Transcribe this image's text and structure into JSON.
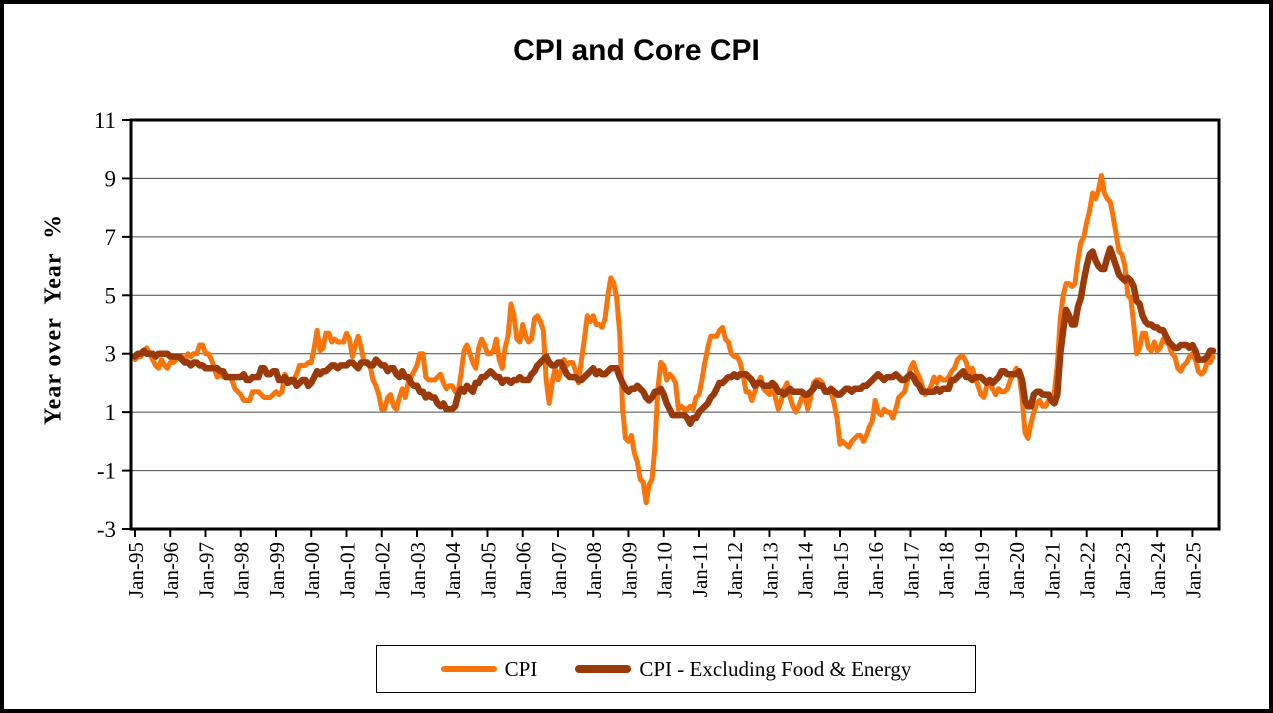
{
  "chart": {
    "title": "CPI and Core CPI",
    "ylabel": "Year over  Year  %"
  },
  "legend": {
    "items": [
      {
        "label": "CPI",
        "color": "#FA740A"
      },
      {
        "label": "CPI - Excluding Food & Energy",
        "color": "#9A3A0B"
      }
    ]
  },
  "colors": {
    "cpi_line": "#FA740A",
    "core_line": "#9A3A0B",
    "gridline": "#4a4a4a",
    "axis": "#000000",
    "background": "#ffffff"
  },
  "chart_data": {
    "type": "line",
    "title": "CPI and Core CPI",
    "xlabel": "",
    "ylabel": "Year over Year %",
    "x_start": "Jan-1995",
    "x_end": "Aug-2025",
    "frequency": "monthly",
    "ylim": [
      -3,
      11
    ],
    "yticks": [
      -3,
      -1,
      1,
      3,
      5,
      7,
      9,
      11
    ],
    "grid": true,
    "legend_position": "bottom",
    "xtick_labels": [
      "Jan-95",
      "Jan-96",
      "Jan-97",
      "Jan-98",
      "Jan-99",
      "Jan-00",
      "Jan-01",
      "Jan-02",
      "Jan-03",
      "Jan-04",
      "Jan-05",
      "Jan-06",
      "Jan-07",
      "Jan-08",
      "Jan-09",
      "Jan-10",
      "Jan-11",
      "Jan-12",
      "Jan-13",
      "Jan-14",
      "Jan-15",
      "Jan-16",
      "Jan-17",
      "Jan-18",
      "Jan-19",
      "Jan-20",
      "Jan-21",
      "Jan-22",
      "Jan-23",
      "Jan-24",
      "Jan-25"
    ],
    "xtick_interval_months": 12,
    "series": [
      {
        "name": "CPI",
        "color": "#FA740A",
        "values": [
          2.8,
          2.9,
          2.9,
          3.1,
          3.2,
          3.0,
          2.8,
          2.6,
          2.5,
          2.8,
          2.6,
          2.5,
          2.7,
          2.7,
          2.8,
          2.9,
          2.9,
          2.8,
          3.0,
          2.9,
          3.0,
          3.0,
          3.3,
          3.3,
          3.0,
          3.0,
          2.8,
          2.5,
          2.2,
          2.3,
          2.2,
          2.2,
          2.2,
          2.1,
          1.8,
          1.7,
          1.6,
          1.4,
          1.4,
          1.4,
          1.7,
          1.7,
          1.7,
          1.6,
          1.5,
          1.5,
          1.5,
          1.6,
          1.7,
          1.6,
          1.7,
          2.3,
          2.1,
          2.0,
          2.1,
          2.3,
          2.6,
          2.6,
          2.6,
          2.7,
          2.7,
          3.2,
          3.8,
          3.1,
          3.2,
          3.7,
          3.7,
          3.4,
          3.5,
          3.4,
          3.4,
          3.4,
          3.7,
          3.5,
          2.9,
          3.3,
          3.6,
          3.2,
          2.7,
          2.7,
          2.6,
          2.1,
          1.9,
          1.6,
          1.1,
          1.1,
          1.5,
          1.6,
          1.2,
          1.1,
          1.5,
          1.8,
          1.5,
          2.0,
          2.2,
          2.4,
          2.6,
          3.0,
          3.0,
          2.2,
          2.1,
          2.1,
          2.1,
          2.2,
          2.3,
          2.0,
          1.8,
          1.9,
          1.9,
          1.7,
          1.7,
          2.3,
          3.1,
          3.3,
          3.0,
          2.7,
          2.5,
          3.2,
          3.5,
          3.3,
          3.0,
          3.0,
          3.1,
          3.5,
          2.8,
          2.5,
          3.2,
          3.6,
          4.7,
          4.3,
          3.5,
          3.4,
          4.0,
          3.6,
          3.4,
          3.5,
          4.2,
          4.3,
          4.1,
          3.8,
          2.1,
          1.3,
          2.0,
          2.5,
          2.1,
          2.4,
          2.8,
          2.6,
          2.7,
          2.7,
          2.4,
          2.0,
          2.8,
          3.5,
          4.3,
          4.1,
          4.3,
          4.0,
          4.0,
          3.9,
          4.2,
          5.0,
          5.6,
          5.4,
          4.9,
          3.7,
          1.1,
          0.1,
          0.0,
          0.2,
          -0.4,
          -0.7,
          -1.3,
          -1.4,
          -2.1,
          -1.5,
          -1.3,
          -0.2,
          1.8,
          2.7,
          2.6,
          2.1,
          2.3,
          2.2,
          2.0,
          1.1,
          1.2,
          1.1,
          1.1,
          1.2,
          1.1,
          1.5,
          1.6,
          2.1,
          2.7,
          3.2,
          3.6,
          3.6,
          3.6,
          3.8,
          3.9,
          3.5,
          3.4,
          3.0,
          2.9,
          2.9,
          2.7,
          2.3,
          1.7,
          1.7,
          1.4,
          1.7,
          2.0,
          2.2,
          1.8,
          1.7,
          1.6,
          2.0,
          1.5,
          1.1,
          1.4,
          1.8,
          2.0,
          1.5,
          1.2,
          1.0,
          1.2,
          1.5,
          1.6,
          1.1,
          1.5,
          2.0,
          2.1,
          2.1,
          2.0,
          1.7,
          1.7,
          1.7,
          1.3,
          0.8,
          -0.1,
          0.0,
          -0.1,
          -0.2,
          0.0,
          0.1,
          0.2,
          0.2,
          0.0,
          0.2,
          0.5,
          0.7,
          1.4,
          1.0,
          0.9,
          1.1,
          1.0,
          1.0,
          0.8,
          1.1,
          1.5,
          1.6,
          1.7,
          2.1,
          2.5,
          2.7,
          2.4,
          2.2,
          1.9,
          1.6,
          1.7,
          1.9,
          2.2,
          2.0,
          2.2,
          2.1,
          2.1,
          2.2,
          2.4,
          2.5,
          2.8,
          2.9,
          2.9,
          2.7,
          2.3,
          2.5,
          2.2,
          1.9,
          1.6,
          1.5,
          1.9,
          2.0,
          1.8,
          1.6,
          1.8,
          1.7,
          1.7,
          1.8,
          2.1,
          2.3,
          2.5,
          2.3,
          1.5,
          0.3,
          0.1,
          0.6,
          1.0,
          1.3,
          1.4,
          1.2,
          1.2,
          1.4,
          1.4,
          1.7,
          2.6,
          4.2,
          5.0,
          5.4,
          5.4,
          5.3,
          5.4,
          6.2,
          6.8,
          7.0,
          7.5,
          7.9,
          8.5,
          8.3,
          8.6,
          9.1,
          8.5,
          8.3,
          8.2,
          7.7,
          7.1,
          6.5,
          6.4,
          6.0,
          5.0,
          4.9,
          4.0,
          3.0,
          3.2,
          3.7,
          3.7,
          3.2,
          3.1,
          3.4,
          3.1,
          3.2,
          3.5,
          3.4,
          3.3,
          3.0,
          2.9,
          2.5,
          2.4,
          2.6,
          2.7,
          2.9,
          3.0,
          2.8,
          2.4,
          2.3,
          2.4,
          2.7,
          2.7,
          2.9
        ]
      },
      {
        "name": "CPI - Excluding Food & Energy",
        "color": "#9A3A0B",
        "values": [
          2.9,
          3.0,
          3.0,
          3.1,
          3.0,
          3.0,
          3.0,
          2.9,
          3.0,
          3.0,
          3.0,
          3.0,
          2.9,
          2.9,
          2.9,
          2.9,
          2.8,
          2.7,
          2.7,
          2.6,
          2.7,
          2.7,
          2.6,
          2.6,
          2.5,
          2.5,
          2.5,
          2.5,
          2.5,
          2.4,
          2.4,
          2.2,
          2.2,
          2.2,
          2.2,
          2.2,
          2.2,
          2.3,
          2.1,
          2.1,
          2.2,
          2.2,
          2.2,
          2.5,
          2.5,
          2.3,
          2.3,
          2.4,
          2.4,
          2.1,
          2.1,
          2.2,
          2.0,
          2.1,
          2.1,
          1.9,
          2.0,
          2.1,
          2.1,
          1.9,
          2.0,
          2.2,
          2.4,
          2.3,
          2.4,
          2.4,
          2.5,
          2.6,
          2.6,
          2.5,
          2.6,
          2.6,
          2.6,
          2.7,
          2.7,
          2.6,
          2.5,
          2.7,
          2.7,
          2.7,
          2.6,
          2.6,
          2.8,
          2.7,
          2.6,
          2.6,
          2.4,
          2.5,
          2.5,
          2.3,
          2.2,
          2.4,
          2.2,
          2.2,
          2.0,
          1.9,
          1.9,
          1.7,
          1.7,
          1.5,
          1.6,
          1.5,
          1.5,
          1.3,
          1.2,
          1.3,
          1.1,
          1.1,
          1.1,
          1.2,
          1.6,
          1.8,
          1.7,
          1.9,
          1.8,
          1.7,
          2.0,
          2.0,
          2.2,
          2.2,
          2.3,
          2.4,
          2.3,
          2.2,
          2.2,
          2.0,
          2.1,
          2.1,
          2.0,
          2.1,
          2.1,
          2.2,
          2.1,
          2.1,
          2.1,
          2.3,
          2.4,
          2.6,
          2.7,
          2.8,
          2.9,
          2.7,
          2.6,
          2.6,
          2.7,
          2.7,
          2.5,
          2.3,
          2.2,
          2.2,
          2.2,
          2.1,
          2.1,
          2.2,
          2.3,
          2.4,
          2.5,
          2.3,
          2.4,
          2.3,
          2.3,
          2.4,
          2.5,
          2.5,
          2.5,
          2.2,
          2.0,
          1.8,
          1.7,
          1.8,
          1.8,
          1.9,
          1.8,
          1.7,
          1.5,
          1.4,
          1.5,
          1.7,
          1.7,
          1.8,
          1.6,
          1.3,
          1.1,
          0.9,
          0.9,
          0.9,
          0.9,
          0.9,
          0.8,
          0.6,
          0.8,
          0.8,
          1.0,
          1.1,
          1.2,
          1.3,
          1.5,
          1.6,
          1.8,
          2.0,
          2.0,
          2.1,
          2.2,
          2.2,
          2.3,
          2.2,
          2.3,
          2.3,
          2.3,
          2.2,
          2.1,
          1.9,
          2.0,
          2.0,
          1.9,
          1.9,
          1.9,
          2.0,
          1.9,
          1.7,
          1.7,
          1.6,
          1.7,
          1.8,
          1.7,
          1.7,
          1.7,
          1.7,
          1.6,
          1.6,
          1.7,
          1.8,
          2.0,
          1.9,
          1.9,
          1.7,
          1.7,
          1.8,
          1.7,
          1.6,
          1.6,
          1.7,
          1.8,
          1.8,
          1.7,
          1.8,
          1.8,
          1.8,
          1.9,
          1.9,
          2.0,
          2.1,
          2.2,
          2.3,
          2.2,
          2.1,
          2.2,
          2.2,
          2.2,
          2.3,
          2.2,
          2.1,
          2.1,
          2.2,
          2.3,
          2.2,
          2.0,
          1.9,
          1.7,
          1.7,
          1.7,
          1.7,
          1.7,
          1.8,
          1.7,
          1.8,
          1.8,
          1.8,
          2.1,
          2.1,
          2.2,
          2.3,
          2.4,
          2.2,
          2.2,
          2.1,
          2.2,
          2.2,
          2.2,
          2.1,
          2.0,
          2.1,
          2.0,
          2.1,
          2.2,
          2.4,
          2.4,
          2.3,
          2.3,
          2.3,
          2.3,
          2.4,
          2.1,
          1.4,
          1.2,
          1.2,
          1.6,
          1.7,
          1.7,
          1.6,
          1.6,
          1.6,
          1.4,
          1.3,
          1.6,
          3.0,
          3.8,
          4.5,
          4.3,
          4.0,
          4.0,
          4.6,
          4.9,
          5.5,
          6.0,
          6.4,
          6.5,
          6.2,
          6.0,
          5.9,
          5.9,
          6.3,
          6.6,
          6.3,
          6.0,
          5.7,
          5.6,
          5.5,
          5.6,
          5.5,
          5.3,
          4.8,
          4.7,
          4.3,
          4.1,
          4.0,
          4.0,
          3.9,
          3.9,
          3.8,
          3.8,
          3.6,
          3.4,
          3.3,
          3.2,
          3.2,
          3.3,
          3.3,
          3.3,
          3.2,
          3.3,
          3.1,
          2.8,
          2.8,
          2.8,
          2.9,
          3.1,
          3.1
        ]
      }
    ]
  }
}
